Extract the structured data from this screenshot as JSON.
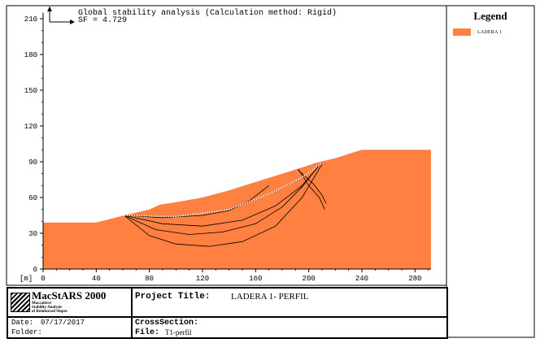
{
  "chart_data": {
    "type": "area",
    "title": "Global stability analysis (Calculation method: Rigid)",
    "subtitle": "SF = 4.729",
    "xlabel": "[m]",
    "ylabel": "",
    "xlim": [
      0,
      292
    ],
    "ylim": [
      0,
      215
    ],
    "x_ticks": [
      "0",
      "40",
      "80",
      "120",
      "160",
      "200",
      "240",
      "280"
    ],
    "y_ticks": [
      "0",
      "30",
      "60",
      "90",
      "120",
      "150",
      "180",
      "210"
    ],
    "grid": false,
    "legend_position": "right",
    "series": [
      {
        "name": "LADERA 1",
        "color": "#ff8040",
        "profile": [
          [
            0,
            0
          ],
          [
            0,
            39
          ],
          [
            40,
            39
          ],
          [
            61,
            45
          ],
          [
            80,
            50
          ],
          [
            88,
            54
          ],
          [
            100,
            56
          ],
          [
            120,
            60
          ],
          [
            140,
            66
          ],
          [
            160,
            73
          ],
          [
            180,
            80
          ],
          [
            200,
            87
          ],
          [
            205,
            89
          ],
          [
            220,
            93
          ],
          [
            240,
            100
          ],
          [
            292,
            100
          ],
          [
            292,
            0
          ]
        ]
      }
    ],
    "slip_surfaces": [
      {
        "points": [
          [
            61,
            45
          ],
          [
            80,
            28
          ],
          [
            100,
            21
          ],
          [
            125,
            19
          ],
          [
            150,
            23
          ],
          [
            175,
            36
          ],
          [
            195,
            60
          ],
          [
            210,
            88
          ]
        ]
      },
      {
        "points": [
          [
            61,
            45
          ],
          [
            85,
            33
          ],
          [
            110,
            29
          ],
          [
            135,
            31
          ],
          [
            160,
            38
          ],
          [
            180,
            52
          ],
          [
            195,
            69
          ],
          [
            207,
            86
          ]
        ]
      },
      {
        "points": [
          [
            61,
            45
          ],
          [
            90,
            38
          ],
          [
            120,
            36
          ],
          [
            150,
            41
          ],
          [
            175,
            53
          ],
          [
            195,
            70
          ],
          [
            208,
            87
          ]
        ]
      },
      {
        "points": [
          [
            61,
            45
          ],
          [
            90,
            43
          ],
          [
            120,
            45
          ],
          [
            140,
            49
          ],
          [
            155,
            57
          ],
          [
            170,
            70
          ]
        ]
      },
      {
        "points": [
          [
            192,
            84
          ],
          [
            200,
            70
          ],
          [
            208,
            60
          ],
          [
            212,
            50
          ]
        ]
      },
      {
        "points": [
          [
            192,
            83
          ],
          [
            203,
            72
          ],
          [
            210,
            62
          ],
          [
            213,
            55
          ]
        ]
      }
    ],
    "critical_surface": {
      "points": [
        [
          61,
          45
        ],
        [
          100,
          44
        ],
        [
          140,
          50
        ],
        [
          170,
          63
        ],
        [
          195,
          77
        ],
        [
          210,
          89
        ]
      ]
    }
  },
  "legend": {
    "title": "Legend",
    "items": [
      {
        "label": "LADERA 1",
        "color": "#ff8040"
      }
    ]
  },
  "footer": {
    "logo_title": "MacStARS 2000",
    "logo_sub1": "Maccaferri",
    "logo_sub2": "Stability Analysis",
    "logo_sub3": "of Reinforced Slopes",
    "project_label": "Project Title:",
    "project_value": "LADERA 1- PERFIL",
    "date_label": "Date:",
    "date_value": "07/17/2017",
    "folder_label": "Folder:",
    "folder_value": "",
    "cross_label": "CrossSection:",
    "cross_value": "",
    "file_label": "File:",
    "file_value": "T1-perfil"
  }
}
